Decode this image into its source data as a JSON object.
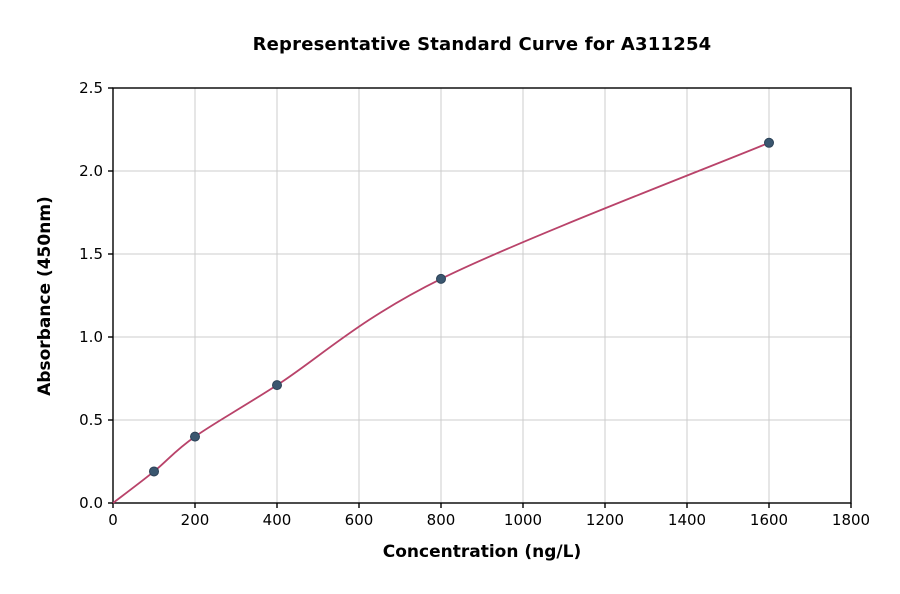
{
  "chart_data": {
    "type": "scatter",
    "title": "Representative Standard Curve for A311254",
    "xlabel": "Concentration (ng/L)",
    "ylabel": "Absorbance (450nm)",
    "xlim": [
      0,
      1800
    ],
    "ylim": [
      0,
      2.5
    ],
    "xticks": [
      0,
      200,
      400,
      600,
      800,
      1000,
      1200,
      1400,
      1600,
      1800
    ],
    "xtick_labels": [
      "0",
      "200",
      "400",
      "600",
      "800",
      "1000",
      "1200",
      "1400",
      "1600",
      "1800"
    ],
    "yticks": [
      0,
      0.5,
      1.0,
      1.5,
      2.0,
      2.5
    ],
    "ytick_labels": [
      "0.0",
      "0.5",
      "1.0",
      "1.5",
      "2.0",
      "2.5"
    ],
    "grid": true,
    "legend": "none",
    "points": {
      "x": [
        100,
        200,
        400,
        800,
        1600
      ],
      "y": [
        0.19,
        0.4,
        0.71,
        1.35,
        2.17
      ]
    },
    "curve": {
      "x": [
        0,
        100,
        200,
        400,
        800,
        1600
      ],
      "y": [
        0,
        0.19,
        0.4,
        0.71,
        1.35,
        2.17
      ]
    },
    "colors": {
      "line": "#b9436a",
      "marker": "#3a566f",
      "marker_edge": "#2c4257",
      "grid": "#cccccc",
      "axis": "#000000",
      "background": "#ffffff"
    }
  }
}
